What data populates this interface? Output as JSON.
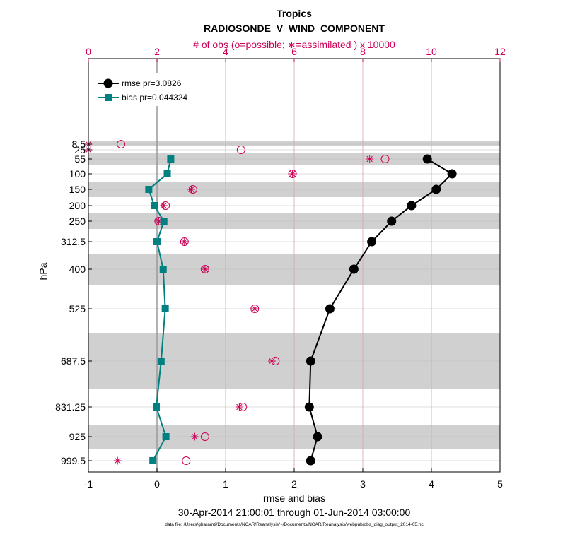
{
  "chart_data": {
    "type": "line",
    "title": "Tropics",
    "subtitle": "RADIOSONDE_V_WIND_COMPONENT",
    "top_axis_label": "# of obs (o=possible; ∗=assimilated ) x 10000",
    "xlabel": "rmse and bias",
    "ylabel": "hPa",
    "date_range": "30-Apr-2014 21:00:01 through 01-Jun-2014 03:00:00",
    "footnote": "data file: /Users/gharamti/Documents/NCAR/Reanalysis/~/Documents/NCAR/Reanalysis/webpub/obs_diag_output_2014-05.nc",
    "xlim": [
      -1,
      5
    ],
    "xticks": [
      "-1",
      "0",
      "1",
      "2",
      "3",
      "4",
      "5"
    ],
    "top_xlim": [
      0,
      12
    ],
    "top_xticks": [
      "0",
      "2",
      "4",
      "6",
      "8",
      "10",
      "12"
    ],
    "levels": [
      8.5,
      25,
      55,
      100,
      150,
      200,
      250,
      312.5,
      400,
      525,
      687.5,
      831.25,
      925,
      999.5
    ],
    "level_labels": [
      "8.5",
      "25",
      "55",
      "100",
      "150",
      "200",
      "250",
      "312.5",
      "400",
      "525",
      "687.5",
      "831.25",
      "925",
      "999.5"
    ],
    "legend_position": "top-left",
    "series": [
      {
        "name": "rmse pr=3.0826",
        "color": "#000000",
        "marker": "circle",
        "values": [
          null,
          null,
          3.94,
          4.3,
          4.07,
          3.71,
          3.42,
          3.13,
          2.87,
          2.52,
          2.24,
          2.22,
          2.34,
          2.24
        ]
      },
      {
        "name": "bias pr=0.044324",
        "color": "#008080",
        "marker": "square",
        "values": [
          null,
          null,
          0.2,
          0.15,
          -0.12,
          -0.04,
          0.1,
          0.0,
          0.09,
          0.12,
          0.06,
          -0.01,
          0.13,
          -0.06
        ]
      }
    ],
    "obs_possible": [
      0.95,
      4.45,
      8.65,
      5.95,
      3.05,
      2.25,
      2.05,
      2.8,
      3.4,
      4.85,
      5.45,
      4.5,
      3.4,
      2.85
    ],
    "obs_assimilated": [
      0.0,
      0.0,
      8.2,
      5.95,
      3.0,
      2.2,
      2.05,
      2.8,
      3.4,
      4.85,
      5.35,
      4.4,
      3.1,
      0.85
    ],
    "colors": {
      "top_axis": "#cc0055",
      "grid": "#cccccc",
      "shade": "#d0d0d0",
      "zero_line": "#999999"
    }
  }
}
